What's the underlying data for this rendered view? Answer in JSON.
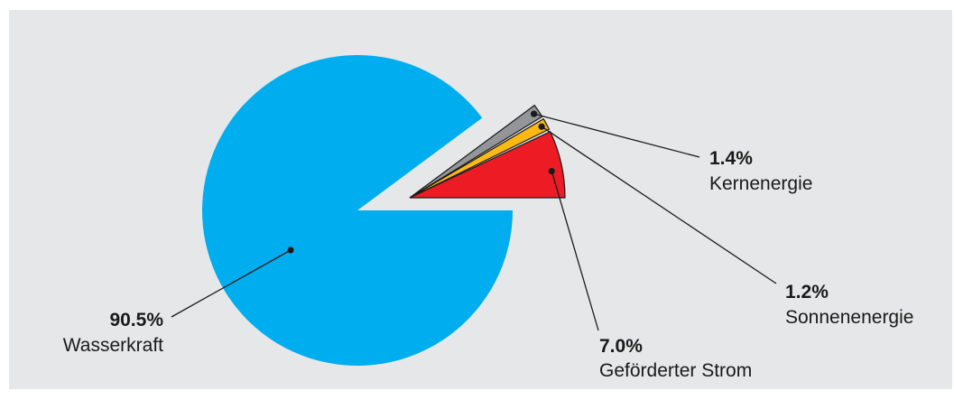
{
  "chart_data": {
    "type": "pie",
    "slices": [
      {
        "label": "Wasserkraft",
        "value": 90.5,
        "value_text": "90.5%",
        "color": "#00aeef"
      },
      {
        "label": "Geförderter Strom",
        "value": 7.0,
        "value_text": "7.0%",
        "color": "#ed1c24"
      },
      {
        "label": "Sonnenenergie",
        "value": 1.2,
        "value_text": "1.2%",
        "color": "#fdb913"
      },
      {
        "label": "Kernenergie",
        "value": 1.4,
        "value_text": "1.4%",
        "color": "#939598"
      }
    ],
    "exploded_slices": [
      "Geförderter Strom",
      "Sonnenenergie",
      "Kernenergie"
    ],
    "background_color": "#e6e7e8"
  }
}
